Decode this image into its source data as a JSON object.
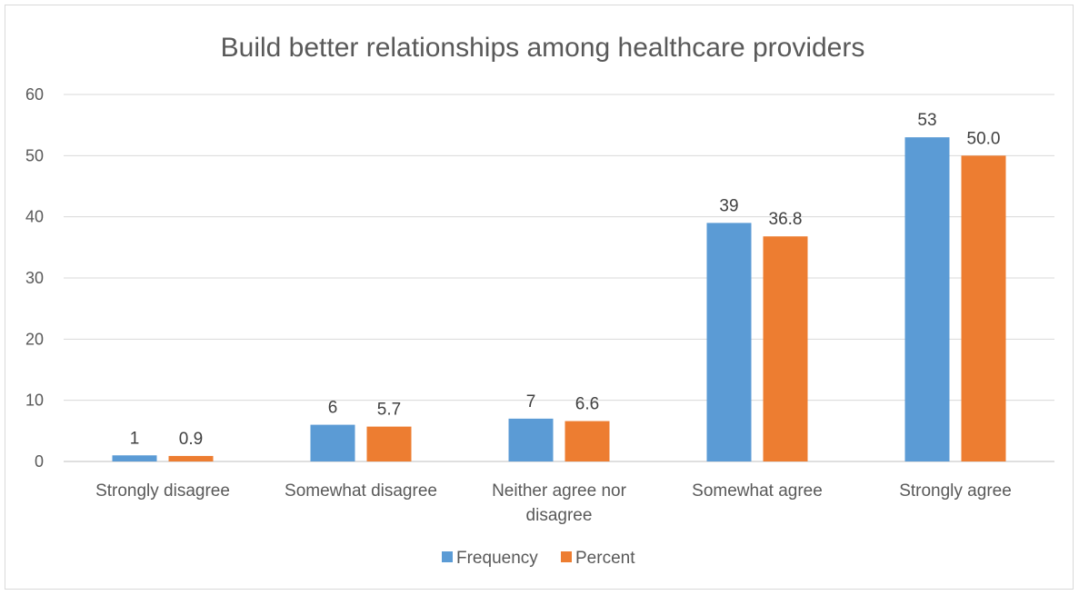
{
  "chart_data": {
    "type": "bar",
    "title": "Build better relationships among healthcare providers",
    "categories": [
      [
        "Strongly disagree"
      ],
      [
        "Somewhat disagree"
      ],
      [
        "Neither agree nor",
        "disagree"
      ],
      [
        "Somewhat agree"
      ],
      [
        "Strongly agree"
      ]
    ],
    "series": [
      {
        "name": "Frequency",
        "color": "#5b9bd5",
        "values": [
          1,
          6,
          7,
          39,
          53
        ],
        "labels": [
          "1",
          "6",
          "7",
          "39",
          "53"
        ]
      },
      {
        "name": "Percent",
        "color": "#ed7d31",
        "values": [
          0.9,
          5.7,
          6.6,
          36.8,
          50.0
        ],
        "labels": [
          "0.9",
          "5.7",
          "6.6",
          "36.8",
          "50.0"
        ]
      }
    ],
    "ylim": [
      0,
      60
    ],
    "yticks": [
      "0",
      "10",
      "20",
      "30",
      "40",
      "50",
      "60"
    ],
    "xlabel": "",
    "ylabel": "",
    "grid": true,
    "legend_position": "bottom"
  }
}
